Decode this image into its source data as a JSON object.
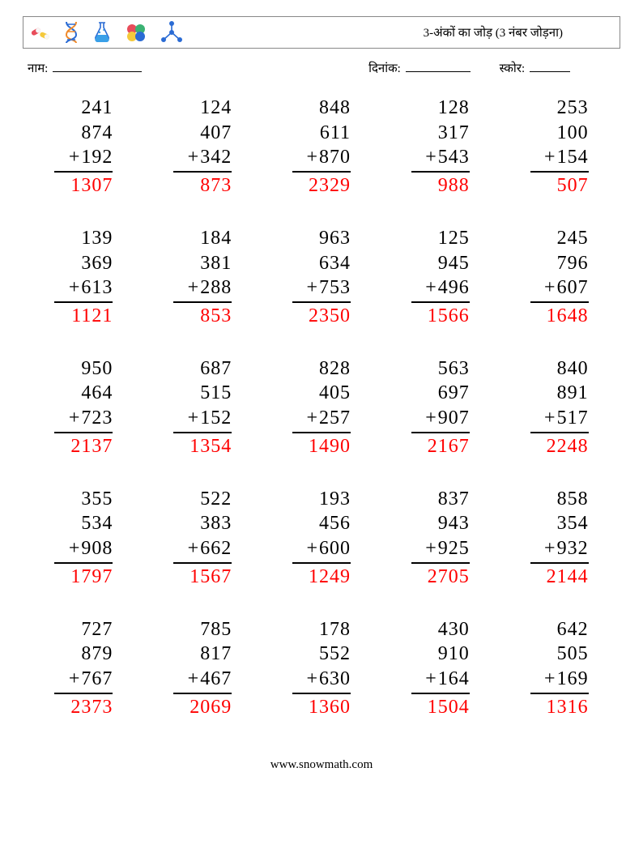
{
  "header": {
    "title": "3-अंकों का जोड़ (3 नंबर जोड़ना)",
    "icon_colors": {
      "pill_red": "#e84c5a",
      "pill_yellow": "#f4c93b",
      "dna_blue": "#2a6bd4",
      "dna_orange": "#f08a2a",
      "flask_blue": "#2a6bd4",
      "flask_liquid": "#3aa0e8",
      "ball_red": "#e84c5a",
      "ball_green": "#3bb273",
      "ball_yellow": "#f4c93b",
      "ball_blue": "#2a6bd4",
      "molecule": "#2a6bd4"
    }
  },
  "meta": {
    "name_label": "नाम:",
    "date_label": "दिनांक:",
    "score_label": "स्कोर:"
  },
  "style": {
    "num_font_size": 24,
    "answer_color": "#ff0000",
    "text_color": "#000000",
    "border_color": "#888888",
    "rows": 5,
    "cols": 5,
    "op": "+"
  },
  "problems": [
    {
      "a": 241,
      "b": 874,
      "c": 192,
      "ans": 1307
    },
    {
      "a": 124,
      "b": 407,
      "c": 342,
      "ans": 873
    },
    {
      "a": 848,
      "b": 611,
      "c": 870,
      "ans": 2329
    },
    {
      "a": 128,
      "b": 317,
      "c": 543,
      "ans": 988
    },
    {
      "a": 253,
      "b": 100,
      "c": 154,
      "ans": 507
    },
    {
      "a": 139,
      "b": 369,
      "c": 613,
      "ans": 1121
    },
    {
      "a": 184,
      "b": 381,
      "c": 288,
      "ans": 853
    },
    {
      "a": 963,
      "b": 634,
      "c": 753,
      "ans": 2350
    },
    {
      "a": 125,
      "b": 945,
      "c": 496,
      "ans": 1566
    },
    {
      "a": 245,
      "b": 796,
      "c": 607,
      "ans": 1648
    },
    {
      "a": 950,
      "b": 464,
      "c": 723,
      "ans": 2137
    },
    {
      "a": 687,
      "b": 515,
      "c": 152,
      "ans": 1354
    },
    {
      "a": 828,
      "b": 405,
      "c": 257,
      "ans": 1490
    },
    {
      "a": 563,
      "b": 697,
      "c": 907,
      "ans": 2167
    },
    {
      "a": 840,
      "b": 891,
      "c": 517,
      "ans": 2248
    },
    {
      "a": 355,
      "b": 534,
      "c": 908,
      "ans": 1797
    },
    {
      "a": 522,
      "b": 383,
      "c": 662,
      "ans": 1567
    },
    {
      "a": 193,
      "b": 456,
      "c": 600,
      "ans": 1249
    },
    {
      "a": 837,
      "b": 943,
      "c": 925,
      "ans": 2705
    },
    {
      "a": 858,
      "b": 354,
      "c": 932,
      "ans": 2144
    },
    {
      "a": 727,
      "b": 879,
      "c": 767,
      "ans": 2373
    },
    {
      "a": 785,
      "b": 817,
      "c": 467,
      "ans": 2069
    },
    {
      "a": 178,
      "b": 552,
      "c": 630,
      "ans": 1360
    },
    {
      "a": 430,
      "b": 910,
      "c": 164,
      "ans": 1504
    },
    {
      "a": 642,
      "b": 505,
      "c": 169,
      "ans": 1316
    }
  ],
  "footer": {
    "text": "www.snowmath.com"
  }
}
